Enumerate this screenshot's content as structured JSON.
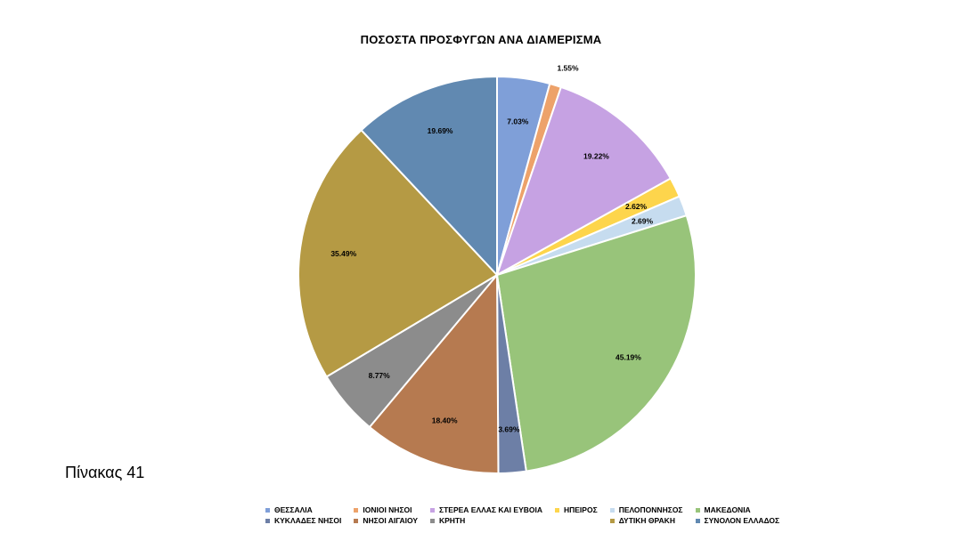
{
  "caption": "Πίνακας 41",
  "chart_data": {
    "type": "pie",
    "title": "ΠΟΣΟΣΤΑ ΠΡΟΣΦΥΓΩΝ ΑΝΑ ΔΙΑΜΕΡΙΣΜΑ",
    "categories": [
      "ΘΕΣΣΑΛΙΑ",
      "ΙΟΝΙΟΙ ΝΗΣΟΙ",
      "ΣΤΕΡΕΑ ΕΛΛΑΣ ΚΑΙ ΕΥΒΟΙΑ",
      "ΗΠΕΙΡΟΣ",
      "ΠΕΛΟΠΟΝΝΗΣΟΣ",
      "ΜΑΚΕΔΟΝΙΑ",
      "ΚΥΚΛΑΔΕΣ ΝΗΣΟΙ",
      "ΝΗΣΟΙ ΑΙΓΑΙΟΥ",
      "ΚΡΗΤΗ",
      "ΔΥΤΙΚΗ ΘΡΑΚΗ",
      "ΣΥΝΟΛΟΝ ΕΛΛΑΔΟΣ"
    ],
    "values": [
      4.1,
      0.9,
      11.2,
      1.53,
      1.57,
      26.33,
      2.15,
      10.72,
      5.11,
      20.68,
      11.47
    ],
    "data_labels": [
      "7.03%",
      "1.55%",
      "19.22%",
      "2.62%",
      "2.69%",
      "45.19%",
      "3.69%",
      "18.40%",
      "8.77%",
      "35.49%",
      "19.69%"
    ],
    "colors": [
      "#7f9fd8",
      "#eda26a",
      "#c6a2e3",
      "#fdd54c",
      "#c6dcef",
      "#98c47a",
      "#6d7fa6",
      "#b67a50",
      "#8c8c8c",
      "#b59a44",
      "#6189b1"
    ],
    "legend_position": "bottom",
    "legend_layout": [
      [
        0,
        1,
        2,
        3,
        4,
        5
      ],
      [
        6,
        7,
        8,
        null,
        9,
        10
      ]
    ]
  }
}
